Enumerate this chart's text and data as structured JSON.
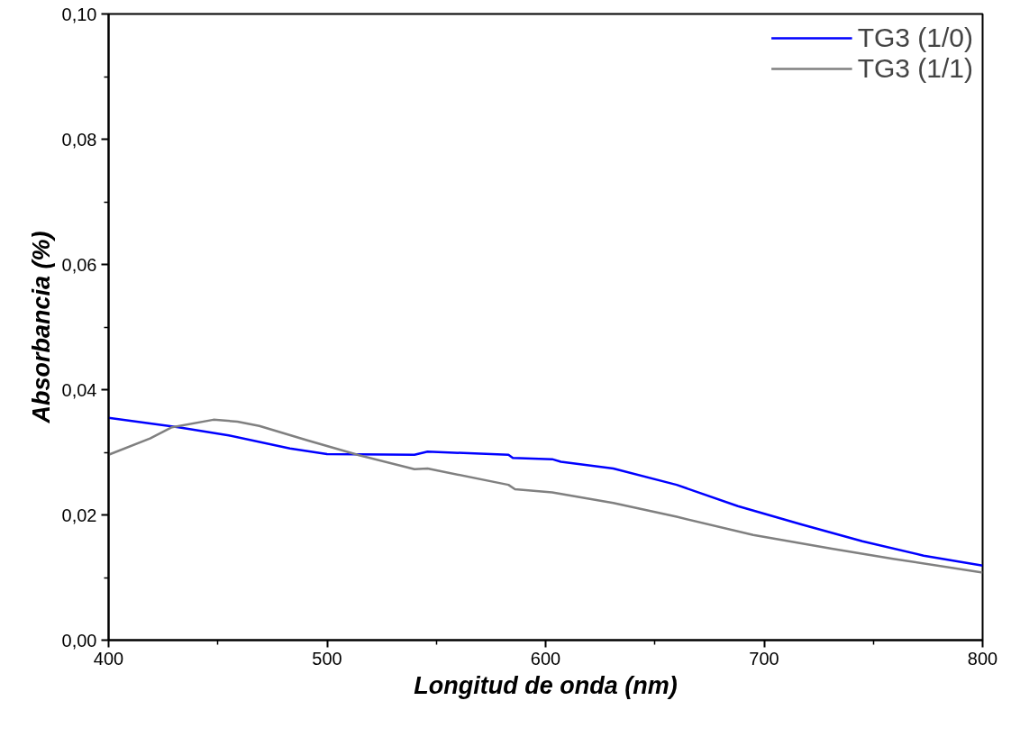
{
  "chart_data": {
    "type": "line",
    "xlabel": "Longitud de onda (nm)",
    "ylabel": "Absorbancia (%)",
    "xlim": [
      400,
      800
    ],
    "ylim": [
      0,
      0.1
    ],
    "xticks": [
      400,
      500,
      600,
      700,
      800
    ],
    "yticks": [
      {
        "value": 0,
        "label": "0,00"
      },
      {
        "value": 0.02,
        "label": "0,02"
      },
      {
        "value": 0.04,
        "label": "0,04"
      },
      {
        "value": 0.06,
        "label": "0,06"
      },
      {
        "value": 0.08,
        "label": "0,08"
      },
      {
        "value": 0.1,
        "label": "0,10"
      }
    ],
    "grid": false,
    "legend": "top right",
    "line_style": "solid",
    "marker": "none",
    "series": [
      {
        "name": "TG3 (1/0)",
        "color": "#0000ff",
        "x": [
          400,
          432,
          455,
          483,
          500,
          540,
          546,
          583,
          585,
          603,
          607,
          631,
          660,
          688,
          717,
          745,
          773,
          800
        ],
        "values": [
          0.0355,
          0.034,
          0.0327,
          0.0306,
          0.0297,
          0.0296,
          0.0301,
          0.0296,
          0.0291,
          0.0289,
          0.0285,
          0.0274,
          0.0248,
          0.0214,
          0.0185,
          0.0158,
          0.0135,
          0.0119
        ]
      },
      {
        "name": "TG3 (1/1)",
        "color": "#808080",
        "x": [
          400,
          419,
          429,
          448,
          459,
          469,
          491,
          515,
          540,
          546,
          583,
          586,
          603,
          631,
          660,
          695,
          731,
          759,
          800
        ],
        "values": [
          0.0296,
          0.0322,
          0.034,
          0.0352,
          0.0349,
          0.0342,
          0.0319,
          0.0295,
          0.0273,
          0.0274,
          0.0248,
          0.0241,
          0.0236,
          0.0219,
          0.0197,
          0.0168,
          0.0146,
          0.013,
          0.0108
        ]
      }
    ]
  }
}
